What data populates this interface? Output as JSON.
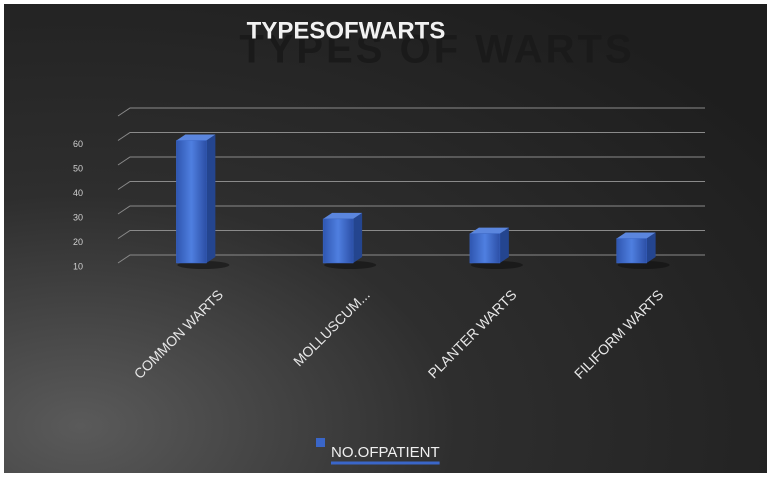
{
  "chart_data": {
    "type": "bar3d",
    "title": "TYPESOFWARTS",
    "watermark": "TYPES OF WARTS",
    "categories": [
      "COMMON WARTS",
      "MOLLUSCUM...",
      "PLANTER WARTS",
      "FILIFORM WARTS"
    ],
    "series": [
      {
        "name": "NO.OFPATIENT",
        "color": "#3a66c8",
        "values": [
          60,
          28,
          22,
          20
        ]
      }
    ],
    "ylim": [
      10,
      70
    ],
    "yticks": [
      10,
      20,
      30,
      40,
      50,
      60
    ],
    "grid": true,
    "legend": "bottom"
  }
}
